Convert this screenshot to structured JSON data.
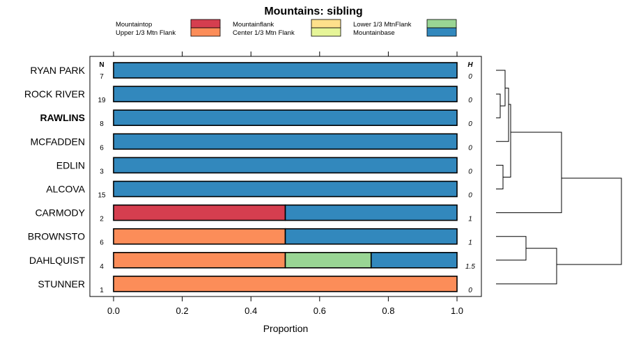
{
  "chart_data": {
    "type": "bar",
    "orientation": "horizontal-stacked",
    "title": "Mountains: sibling",
    "xlabel": "Proportion",
    "xlim": [
      0,
      1
    ],
    "xticks": [
      "0.0",
      "0.2",
      "0.4",
      "0.6",
      "0.8",
      "1.0"
    ],
    "n_header": "N",
    "h_header": "H",
    "legend": [
      {
        "name": "Mountaintop",
        "color": "#d53e4f"
      },
      {
        "name": "Upper 1/3 Mtn Flank",
        "color": "#fc8d59"
      },
      {
        "name": "Mountainflank",
        "color": "#fee08b"
      },
      {
        "name": "Center 1/3 Mtn Flank",
        "color": "#e6f598"
      },
      {
        "name": "Lower 1/3 MtnFlank",
        "color": "#99d594"
      },
      {
        "name": "Mountainbase",
        "color": "#3288bd"
      }
    ],
    "rows": [
      {
        "label": "RYAN PARK",
        "bold": false,
        "n": "7",
        "h": "0",
        "values": [
          0,
          0,
          0,
          0,
          0,
          1
        ]
      },
      {
        "label": "ROCK RIVER",
        "bold": false,
        "n": "19",
        "h": "0",
        "values": [
          0,
          0,
          0,
          0,
          0,
          1
        ]
      },
      {
        "label": "RAWLINS",
        "bold": true,
        "n": "8",
        "h": "0",
        "values": [
          0,
          0,
          0,
          0,
          0,
          1
        ]
      },
      {
        "label": "MCFADDEN",
        "bold": false,
        "n": "6",
        "h": "0",
        "values": [
          0,
          0,
          0,
          0,
          0,
          1
        ]
      },
      {
        "label": "EDLIN",
        "bold": false,
        "n": "3",
        "h": "0",
        "values": [
          0,
          0,
          0,
          0,
          0,
          1
        ]
      },
      {
        "label": "ALCOVA",
        "bold": false,
        "n": "15",
        "h": "0",
        "values": [
          0,
          0,
          0,
          0,
          0,
          1
        ]
      },
      {
        "label": "CARMODY",
        "bold": false,
        "n": "2",
        "h": "1",
        "values": [
          0.5,
          0,
          0,
          0,
          0,
          0.5
        ]
      },
      {
        "label": "BROWNSTO",
        "bold": false,
        "n": "6",
        "h": "1",
        "values": [
          0,
          0.5,
          0,
          0,
          0,
          0.5
        ]
      },
      {
        "label": "DAHLQUIST",
        "bold": false,
        "n": "4",
        "h": "1.5",
        "values": [
          0,
          0.5,
          0,
          0,
          0.25,
          0.25
        ]
      },
      {
        "label": "STUNNER",
        "bold": false,
        "n": "1",
        "h": "0",
        "values": [
          0,
          1,
          0,
          0,
          0,
          0
        ]
      }
    ],
    "dendrogram": "hierarchical clustering of the 10 rows shown to the right of the plot"
  }
}
